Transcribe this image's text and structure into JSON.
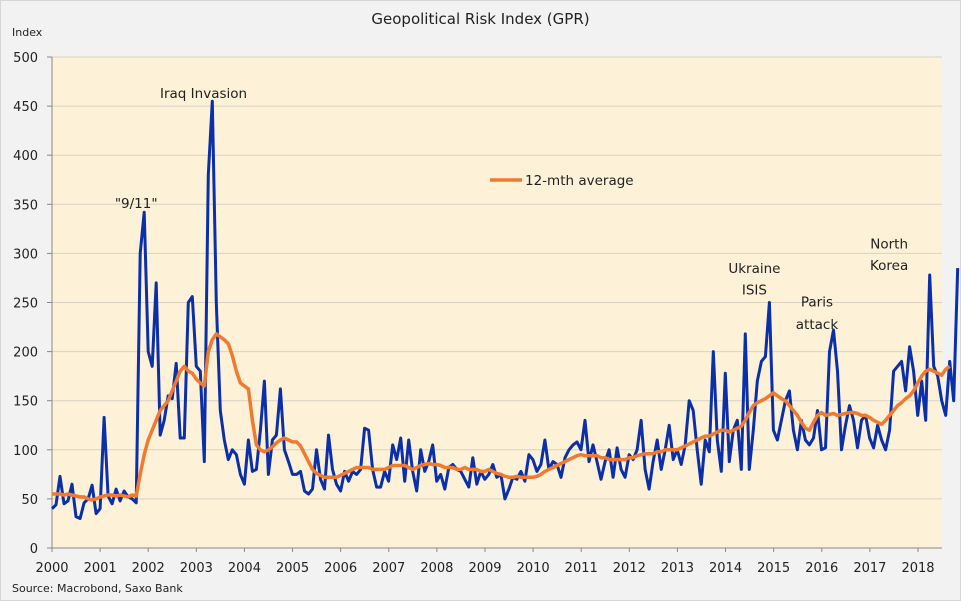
{
  "chart_data": {
    "type": "line",
    "title": "Geopolitical Risk Index (GPR)",
    "ylabel": "Index",
    "xlabel": "",
    "source": "Source: Macrobond, Saxo Bank",
    "ylim": [
      0,
      500
    ],
    "xlim": [
      2000,
      2018.5
    ],
    "yticks": [
      0,
      50,
      100,
      150,
      200,
      250,
      300,
      350,
      400,
      450,
      500
    ],
    "xticks": [
      "2000",
      "2001",
      "2002",
      "2003",
      "2004",
      "2005",
      "2006",
      "2007",
      "2008",
      "2009",
      "2010",
      "2011",
      "2012",
      "2013",
      "2014",
      "2015",
      "2016",
      "2017",
      "2018"
    ],
    "grid": true,
    "legend": {
      "position": "top-center",
      "entries": [
        "12-mth average"
      ]
    },
    "colors": {
      "gpr": "#0a2fa8",
      "avg": "#f07a30",
      "plot_bg": "#fdf2d7",
      "grid": "#d9d2c3"
    },
    "series": [
      {
        "name": "GPR",
        "x_start": 2000.0,
        "x_step": 0.0833,
        "values": [
          40,
          44,
          73,
          45,
          48,
          65,
          32,
          30,
          46,
          50,
          64,
          35,
          40,
          133,
          53,
          45,
          60,
          48,
          58,
          52,
          50,
          46,
          300,
          342,
          200,
          185,
          270,
          115,
          130,
          155,
          152,
          188,
          112,
          112,
          250,
          256,
          185,
          180,
          88,
          380,
          455,
          250,
          140,
          110,
          90,
          100,
          95,
          75,
          65,
          110,
          78,
          80,
          120,
          170,
          75,
          110,
          115,
          162,
          100,
          88,
          75,
          75,
          78,
          58,
          55,
          60,
          100,
          70,
          60,
          115,
          80,
          65,
          58,
          78,
          68,
          78,
          75,
          80,
          122,
          120,
          80,
          62,
          62,
          78,
          68,
          105,
          90,
          112,
          68,
          110,
          78,
          58,
          100,
          78,
          88,
          105,
          68,
          75,
          60,
          82,
          85,
          80,
          78,
          70,
          62,
          92,
          65,
          78,
          70,
          75,
          85,
          72,
          75,
          50,
          60,
          72,
          70,
          78,
          68,
          95,
          90,
          78,
          85,
          110,
          80,
          88,
          85,
          72,
          92,
          100,
          105,
          108,
          100,
          130,
          88,
          105,
          88,
          70,
          88,
          100,
          72,
          102,
          80,
          72,
          95,
          90,
          100,
          130,
          80,
          60,
          88,
          110,
          80,
          100,
          125,
          90,
          100,
          85,
          105,
          150,
          140,
          100,
          65,
          110,
          98,
          200,
          110,
          78,
          178,
          88,
          120,
          130,
          80,
          218,
          80,
          120,
          170,
          190,
          195,
          250,
          120,
          110,
          130,
          150,
          160,
          120,
          100,
          130,
          110,
          105,
          112,
          140,
          100,
          102,
          200,
          222,
          180,
          100,
          125,
          145,
          130,
          102,
          130,
          135,
          112,
          102,
          125,
          110,
          100,
          120,
          180,
          185,
          190,
          160,
          205,
          180,
          135,
          170,
          130,
          278,
          185,
          175,
          150,
          135,
          190,
          150,
          285
        ]
      },
      {
        "name": "12-mth average",
        "x_start": 2000.0,
        "x_step": 0.0833,
        "values": [
          55,
          55,
          55,
          54,
          55,
          54,
          53,
          52,
          52,
          50,
          49,
          50,
          52,
          53,
          54,
          54,
          53,
          54,
          53,
          52,
          54,
          53,
          75,
          95,
          110,
          120,
          130,
          140,
          145,
          150,
          160,
          170,
          180,
          185,
          180,
          178,
          172,
          168,
          165,
          200,
          212,
          218,
          215,
          212,
          208,
          196,
          180,
          168,
          165,
          162,
          130,
          105,
          100,
          98,
          100,
          103,
          107,
          110,
          112,
          110,
          108,
          108,
          104,
          96,
          88,
          80,
          76,
          74,
          72,
          72,
          72,
          72,
          74,
          76,
          78,
          80,
          82,
          82,
          82,
          82,
          80,
          80,
          80,
          80,
          82,
          84,
          84,
          84,
          84,
          82,
          80,
          82,
          84,
          85,
          86,
          85,
          85,
          84,
          82,
          82,
          82,
          80,
          80,
          82,
          80,
          80,
          80,
          78,
          78,
          80,
          78,
          76,
          75,
          73,
          72,
          72,
          73,
          72,
          72,
          72,
          72,
          73,
          75,
          78,
          80,
          82,
          84,
          86,
          88,
          90,
          92,
          94,
          95,
          94,
          94,
          94,
          94,
          92,
          92,
          90,
          90,
          90,
          90,
          90,
          92,
          92,
          94,
          95,
          96,
          96,
          96,
          98,
          98,
          100,
          100,
          100,
          100,
          102,
          104,
          106,
          108,
          110,
          112,
          114,
          114,
          116,
          118,
          120,
          120,
          118,
          120,
          122,
          124,
          130,
          138,
          145,
          148,
          150,
          152,
          155,
          158,
          155,
          152,
          150,
          145,
          140,
          135,
          128,
          122,
          120,
          128,
          135,
          138,
          135,
          136,
          137,
          135,
          136,
          137,
          138,
          138,
          137,
          135,
          135,
          133,
          130,
          128,
          126,
          130,
          135,
          140,
          145,
          148,
          152,
          155,
          160,
          168,
          175,
          180,
          182,
          180,
          178,
          176,
          182,
          185
        ]
      }
    ],
    "annotations": [
      {
        "text": "Iraq Invasion",
        "x": 2003.15,
        "y": 458
      },
      {
        "text": "\"9/11\"",
        "x": 2001.75,
        "y": 346
      },
      {
        "text": "Ukraine",
        "x": 2014.6,
        "y": 280
      },
      {
        "text": "ISIS",
        "x": 2014.6,
        "y": 258
      },
      {
        "text": "Paris",
        "x": 2015.9,
        "y": 246
      },
      {
        "text": "attack",
        "x": 2015.9,
        "y": 223
      },
      {
        "text": "North",
        "x": 2017.4,
        "y": 305
      },
      {
        "text": "Korea",
        "x": 2017.4,
        "y": 283
      }
    ]
  }
}
